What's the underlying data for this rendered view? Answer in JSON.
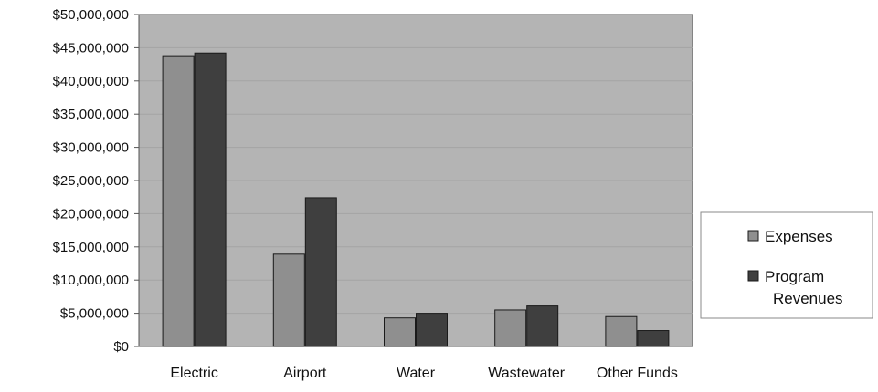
{
  "chart_data": {
    "type": "bar",
    "title": "",
    "xlabel": "",
    "ylabel": "",
    "categories": [
      "Electric",
      "Airport",
      "Water",
      "Wastewater",
      "Other Funds"
    ],
    "series": [
      {
        "name": "Expenses",
        "values": [
          43800000,
          13900000,
          4300000,
          5500000,
          4500000
        ]
      },
      {
        "name": "Program Revenues",
        "values": [
          44200000,
          22400000,
          5000000,
          6100000,
          2400000
        ]
      }
    ],
    "ylim": [
      0,
      50000000
    ],
    "yticks": [
      0,
      5000000,
      10000000,
      15000000,
      20000000,
      25000000,
      30000000,
      35000000,
      40000000,
      45000000,
      50000000
    ],
    "ytick_labels": [
      "$0",
      "$5,000,000",
      "$10,000,000",
      "$15,000,000",
      "$20,000,000",
      "$25,000,000",
      "$30,000,000",
      "$35,000,000",
      "$40,000,000",
      "$45,000,000",
      "$50,000,000"
    ],
    "grid": true,
    "legend_position": "right",
    "legend_labels": [
      [
        "Expenses"
      ],
      [
        "Program",
        "Revenues"
      ]
    ],
    "colors": {
      "plot_background": "#b4b4b4",
      "expenses": "#8f8f8f",
      "program_revenues": "#3f3f3f",
      "gridline": "#a4a4a4",
      "axis": "#555555",
      "legend_border": "#8a8a8a"
    }
  }
}
